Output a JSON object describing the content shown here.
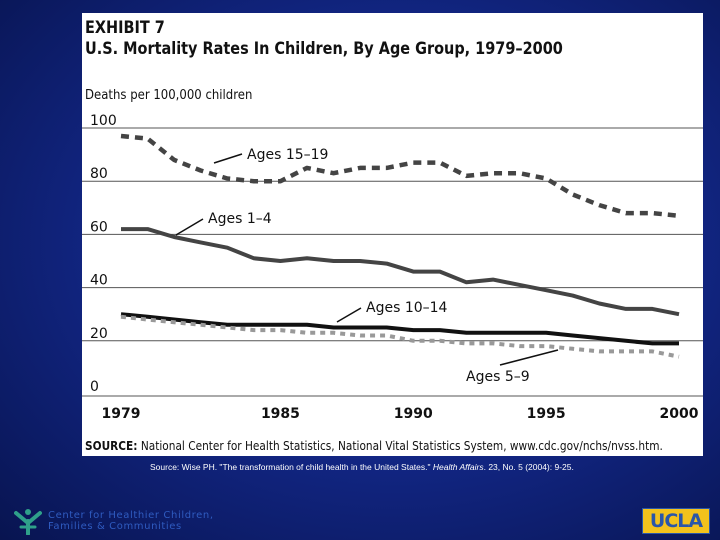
{
  "exhibit_label": "EXHIBIT 7",
  "source": {
    "label": "SOURCE:",
    "text": " National Center for Health Statistics, National Vital Statistics System, www.cdc.gov/nchs/nvss.htm."
  },
  "citation": {
    "before": "Source: Wise PH. \"The transformation of child health in the United States.\" ",
    "journal": "Health Affairs",
    "after": ". 23, No. 5 (2004): 9-25."
  },
  "org": {
    "line1": "Center for Healthier Children,",
    "line2": "Families & Communities"
  },
  "logo_text": "UCLA",
  "colors": {
    "background": "#13288a",
    "panel": "#ffffff",
    "dark_line": "#444444",
    "black_line": "#111111",
    "light_dashed": "#999999",
    "org_text": "#2f5bc0",
    "ucla_gold": "#f3c21c",
    "ucla_blue": "#2a56a8"
  },
  "chart_data": {
    "type": "line",
    "title": "U.S. Mortality Rates In Children, By Age Group, 1979–2000",
    "ylabel": "Deaths per 100,000 children",
    "xlabel": "",
    "ylim": [
      0,
      100
    ],
    "xlim": [
      1979,
      2000
    ],
    "yticks": [
      0,
      20,
      40,
      60,
      80,
      100
    ],
    "xticks": [
      1979,
      1985,
      1990,
      1995,
      2000
    ],
    "grid": "horizontal",
    "x": [
      1979,
      1980,
      1981,
      1982,
      1983,
      1984,
      1985,
      1986,
      1987,
      1988,
      1989,
      1990,
      1991,
      1992,
      1993,
      1994,
      1995,
      1996,
      1997,
      1998,
      1999,
      2000
    ],
    "series": [
      {
        "name": "Ages 15–19",
        "style": "dashed",
        "values": [
          94,
          93,
          85,
          81,
          78,
          77,
          77,
          82,
          80,
          82,
          82,
          84,
          84,
          79,
          80,
          80,
          78,
          72,
          68,
          65,
          65,
          64
        ]
      },
      {
        "name": "Ages 1–4",
        "style": "solid",
        "values": [
          59,
          59,
          56,
          54,
          52,
          48,
          47,
          48,
          47,
          47,
          46,
          43,
          43,
          39,
          40,
          38,
          36,
          34,
          31,
          29,
          29,
          27
        ]
      },
      {
        "name": "Ages 10–14",
        "style": "solid",
        "values": [
          27,
          26,
          25,
          24,
          23,
          23,
          23,
          23,
          22,
          22,
          22,
          21,
          21,
          20,
          20,
          20,
          20,
          19,
          18,
          17,
          16,
          16
        ]
      },
      {
        "name": "Ages 5–9",
        "style": "dashed",
        "values": [
          26,
          25,
          24,
          23,
          22,
          21,
          21,
          20,
          20,
          19,
          19,
          17,
          17,
          16,
          16,
          15,
          15,
          14,
          13,
          13,
          13,
          11
        ]
      }
    ]
  }
}
